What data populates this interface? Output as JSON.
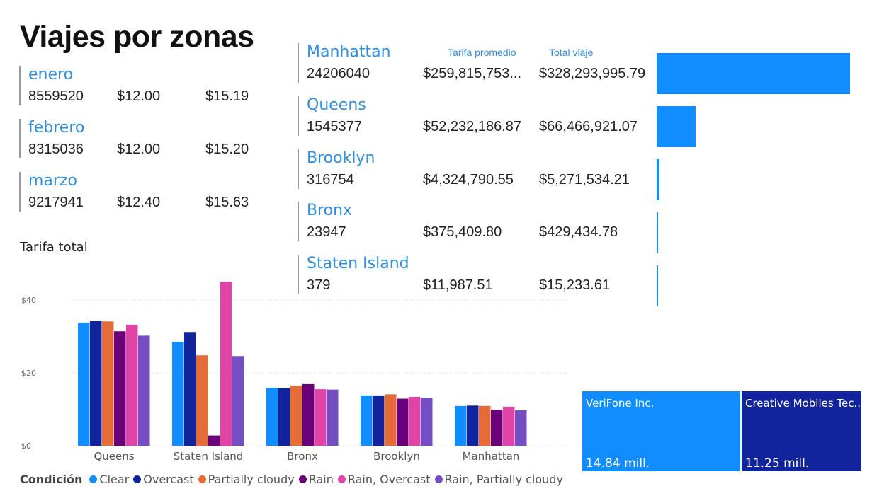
{
  "title": "Viajes por zonas",
  "months": [
    {
      "name": "enero",
      "trips": "8559520",
      "avg": "$12.00",
      "total": "$15.19"
    },
    {
      "name": "febrero",
      "trips": "8315036",
      "avg": "$12.00",
      "total": "$15.20"
    },
    {
      "name": "marzo",
      "trips": "9217941",
      "avg": "$12.40",
      "total": "$15.63"
    }
  ],
  "zones_header": {
    "avg_label": "Tarifa promedio",
    "total_label": "Total viaje"
  },
  "zones": [
    {
      "name": "Manhattan",
      "trips": "24206040",
      "avg": "$259,815,753...",
      "total": "$328,293,995.79",
      "total_value": 328293995.79
    },
    {
      "name": "Queens",
      "trips": "1545377",
      "avg": "$52,232,186.87",
      "total": "$66,466,921.07",
      "total_value": 66466921.07
    },
    {
      "name": "Brooklyn",
      "trips": "316754",
      "avg": "$4,324,790.55",
      "total": "$5,271,534.21",
      "total_value": 5271534.21
    },
    {
      "name": "Bronx",
      "trips": "23947",
      "avg": "$375,409.80",
      "total": "$429,434.78",
      "total_value": 429434.78
    },
    {
      "name": "Staten Island",
      "trips": "379",
      "avg": "$11,987.51",
      "total": "$15,233.61",
      "total_value": 15233.61
    }
  ],
  "chart_title": "Tarifa total",
  "chart_data": {
    "type": "bar",
    "categories": [
      "Queens",
      "Staten Island",
      "Bronx",
      "Brooklyn",
      "Manhattan"
    ],
    "series": [
      {
        "name": "Clear",
        "color": "#118dff",
        "values": [
          33.8,
          28.5,
          15.9,
          13.8,
          10.9
        ]
      },
      {
        "name": "Overcast",
        "color": "#12239e",
        "values": [
          34.2,
          31.2,
          15.8,
          13.8,
          11.0
        ]
      },
      {
        "name": "Partially cloudy",
        "color": "#e66c37",
        "values": [
          34.1,
          24.8,
          16.5,
          14.1,
          10.9
        ]
      },
      {
        "name": "Rain",
        "color": "#6b007b",
        "values": [
          31.4,
          2.8,
          16.9,
          12.9,
          9.9
        ]
      },
      {
        "name": "Rain, Overcast",
        "color": "#e044a7",
        "values": [
          33.2,
          45.0,
          15.5,
          13.4,
          10.7
        ]
      },
      {
        "name": "Rain, Partially cloudy",
        "color": "#744ec2",
        "values": [
          30.2,
          24.6,
          15.4,
          13.2,
          9.7
        ]
      }
    ],
    "yticks": [
      "$0",
      "$20",
      "$40"
    ],
    "ytick_values": [
      0,
      20,
      40
    ],
    "ylim": [
      0,
      46
    ],
    "grid": true,
    "legend_title": "Condición",
    "legend_placement": "bottom"
  },
  "treemap": [
    {
      "name": "VeriFone Inc.",
      "value_label": "14.84 mill.",
      "value": 14.84,
      "color": "#118dff"
    },
    {
      "name": "Creative Mobiles Tec...",
      "value_label": "11.25 mill.",
      "value": 11.25,
      "color": "#12239e"
    }
  ]
}
